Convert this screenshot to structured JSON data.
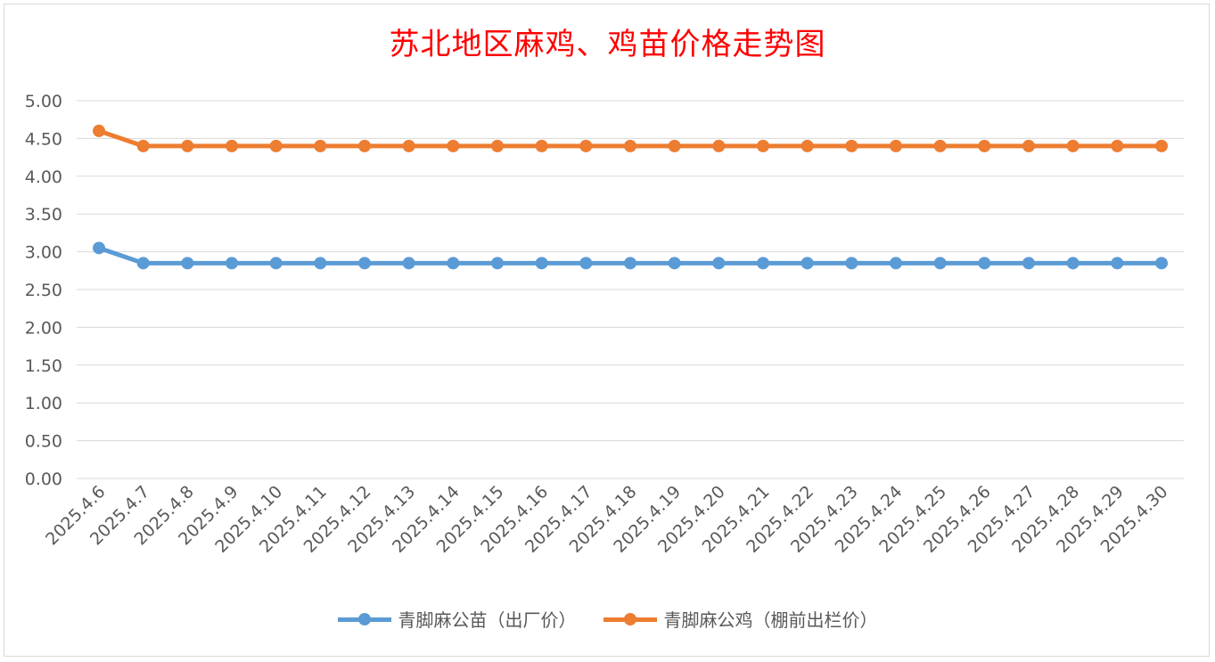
{
  "title": "苏北地区麻鸡、鸡苗价格走势图",
  "colors": {
    "title": "#ff0000",
    "series_blue": "#5b9bd5",
    "series_orange": "#ed7d31",
    "grid": "#d9d9d9",
    "text": "#595959"
  },
  "chart_data": {
    "type": "line",
    "title": "苏北地区麻鸡、鸡苗价格走势图",
    "xlabel": "",
    "ylabel": "",
    "ylim": [
      0,
      5
    ],
    "ytick_step": 0.5,
    "grid": true,
    "legend_position": "bottom",
    "categories": [
      "2025.4.6",
      "2025.4.7",
      "2025.4.8",
      "2025.4.9",
      "2025.4.10",
      "2025.4.11",
      "2025.4.12",
      "2025.4.13",
      "2025.4.14",
      "2025.4.15",
      "2025.4.16",
      "2025.4.17",
      "2025.4.18",
      "2025.4.19",
      "2025.4.20",
      "2025.4.21",
      "2025.4.22",
      "2025.4.23",
      "2025.4.24",
      "2025.4.25",
      "2025.4.26",
      "2025.4.27",
      "2025.4.28",
      "2025.4.29",
      "2025.4.30"
    ],
    "yticks": [
      "0.00",
      "0.50",
      "1.00",
      "1.50",
      "2.00",
      "2.50",
      "3.00",
      "3.50",
      "4.00",
      "4.50",
      "5.00"
    ],
    "series": [
      {
        "name": "青脚麻公苗（出厂价）",
        "color": "#5b9bd5",
        "values": [
          3.05,
          2.85,
          2.85,
          2.85,
          2.85,
          2.85,
          2.85,
          2.85,
          2.85,
          2.85,
          2.85,
          2.85,
          2.85,
          2.85,
          2.85,
          2.85,
          2.85,
          2.85,
          2.85,
          2.85,
          2.85,
          2.85,
          2.85,
          2.85,
          2.85
        ]
      },
      {
        "name": "青脚麻公鸡（棚前出栏价）",
        "color": "#ed7d31",
        "values": [
          4.6,
          4.4,
          4.4,
          4.4,
          4.4,
          4.4,
          4.4,
          4.4,
          4.4,
          4.4,
          4.4,
          4.4,
          4.4,
          4.4,
          4.4,
          4.4,
          4.4,
          4.4,
          4.4,
          4.4,
          4.4,
          4.4,
          4.4,
          4.4,
          4.4
        ]
      }
    ]
  }
}
